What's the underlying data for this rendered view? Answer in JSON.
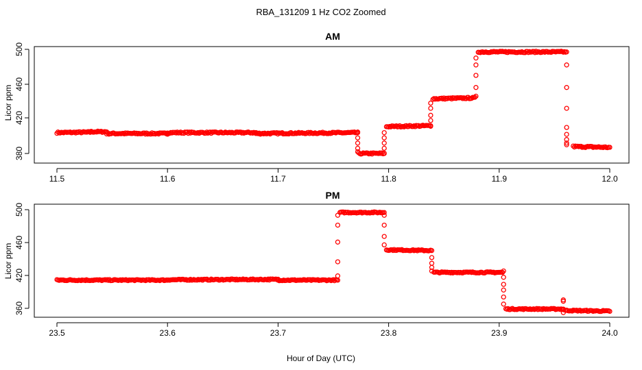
{
  "title": "RBA_131209  1 Hz CO2 Zoomed",
  "xlabel": "Hour of Day (UTC)",
  "colors": {
    "points": "#ff0000",
    "axis": "#000000",
    "background": "#ffffff"
  },
  "chart_data": [
    {
      "type": "scatter",
      "title": "AM",
      "ylabel": "Licor ppm",
      "xlim": [
        11.5,
        12.0
      ],
      "ylim": [
        373,
        503
      ],
      "x_ticks": [
        "11.5",
        "11.6",
        "11.7",
        "11.8",
        "11.9",
        "12.0"
      ],
      "y_ticks": [
        "380",
        "420",
        "460",
        "500"
      ],
      "grid": false,
      "legend": "none",
      "marker": "open-circle",
      "segments": [
        {
          "x": [
            11.5,
            11.53
          ],
          "y": [
            404,
            404.5
          ]
        },
        {
          "x": [
            11.53,
            11.545
          ],
          "y": [
            405,
            405
          ]
        },
        {
          "x": [
            11.545,
            11.6
          ],
          "y": [
            403,
            403
          ]
        },
        {
          "x": [
            11.6,
            11.68
          ],
          "y": [
            404,
            404
          ]
        },
        {
          "x": [
            11.68,
            11.772
          ],
          "y": [
            403,
            404
          ]
        },
        {
          "x": [
            11.773,
            11.796
          ],
          "y": [
            380,
            380
          ]
        },
        {
          "x": [
            11.798,
            11.838
          ],
          "y": [
            411,
            412
          ]
        },
        {
          "x": [
            11.84,
            11.878
          ],
          "y": [
            443,
            444
          ]
        },
        {
          "x": [
            11.881,
            11.96
          ],
          "y": [
            497,
            497
          ]
        },
        {
          "x": [
            11.967,
            12.0
          ],
          "y": [
            388,
            387
          ]
        }
      ],
      "transitions": [
        {
          "x": 11.772,
          "y": [
            404,
            398,
            392,
            386,
            382
          ]
        },
        {
          "x": 11.796,
          "y": [
            380,
            386,
            392,
            398,
            404
          ]
        },
        {
          "x": 11.838,
          "y": [
            412,
            418,
            424,
            432,
            438
          ]
        },
        {
          "x": 11.879,
          "y": [
            446,
            456,
            470,
            482,
            490
          ]
        },
        {
          "x": 11.961,
          "y": [
            497,
            482,
            456,
            432,
            410,
            402,
            396,
            392,
            390
          ]
        }
      ]
    },
    {
      "type": "scatter",
      "title": "PM",
      "ylabel": "Licor ppm",
      "xlim": [
        23.5,
        24.0
      ],
      "ylim": [
        350,
        505
      ],
      "x_ticks": [
        "23.5",
        "23.6",
        "23.7",
        "23.8",
        "23.9",
        "24.0"
      ],
      "y_ticks": [
        "360",
        "420",
        "460",
        "500"
      ],
      "grid": false,
      "legend": "none",
      "marker": "open-circle",
      "segments": [
        {
          "x": [
            23.5,
            23.6
          ],
          "y": [
            400,
            400
          ]
        },
        {
          "x": [
            23.6,
            23.7
          ],
          "y": [
            400.5,
            401
          ]
        },
        {
          "x": [
            23.7,
            23.753
          ],
          "y": [
            400,
            400
          ]
        },
        {
          "x": [
            23.756,
            23.795
          ],
          "y": [
            496,
            496
          ]
        },
        {
          "x": [
            23.798,
            23.838
          ],
          "y": [
            443,
            442
          ]
        },
        {
          "x": [
            23.841,
            23.903
          ],
          "y": [
            411,
            411
          ]
        },
        {
          "x": [
            23.906,
            23.958
          ],
          "y": [
            359,
            359
          ]
        },
        {
          "x": [
            23.96,
            24.0
          ],
          "y": [
            357,
            356
          ]
        }
      ],
      "transitions": [
        {
          "x": 23.754,
          "y": [
            400,
            406,
            426,
            454,
            478,
            492
          ]
        },
        {
          "x": 23.796,
          "y": [
            496,
            492,
            478,
            462,
            450
          ]
        },
        {
          "x": 23.839,
          "y": [
            442,
            432,
            424,
            418,
            413
          ]
        },
        {
          "x": 23.904,
          "y": [
            413,
            404,
            394,
            386,
            376,
            366
          ]
        },
        {
          "x": 23.958,
          "y": [
            354,
            358,
            370,
            372
          ]
        }
      ]
    }
  ]
}
